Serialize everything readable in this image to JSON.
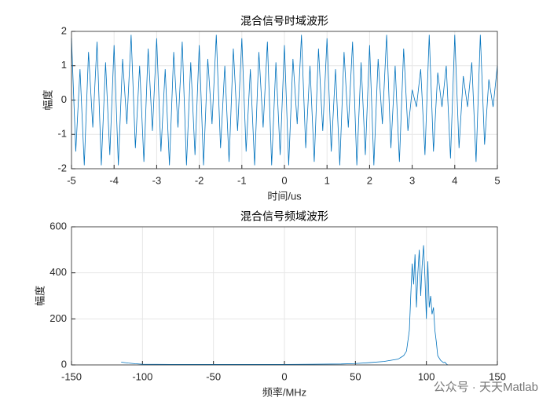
{
  "chart_data": [
    {
      "type": "line",
      "title": "混合信号时域波形",
      "x_label": "时间/us",
      "y_label": "幅度",
      "color": "#0072BD",
      "grid": true,
      "xlim": [
        -5,
        5
      ],
      "ylim": [
        -2,
        2
      ],
      "xticks": [
        -5,
        -4,
        -3,
        -2,
        -1,
        0,
        1,
        2,
        3,
        4,
        5
      ],
      "yticks": [
        -2,
        -1,
        0,
        1,
        2
      ],
      "x": [
        -5,
        -4.9,
        -4.8,
        -4.7,
        -4.6,
        -4.5,
        -4.4,
        -4.3,
        -4.2,
        -4.1,
        -4,
        -3.9,
        -3.8,
        -3.7,
        -3.6,
        -3.5,
        -3.4,
        -3.3,
        -3.2,
        -3.1,
        -3,
        -2.9,
        -2.8,
        -2.7,
        -2.6,
        -2.5,
        -2.4,
        -2.3,
        -2.2,
        -2.1,
        -2,
        -1.9,
        -1.8,
        -1.7,
        -1.6,
        -1.5,
        -1.4,
        -1.3,
        -1.2,
        -1.1,
        -1,
        -0.9,
        -0.8,
        -0.7,
        -0.6,
        -0.5,
        -0.4,
        -0.3,
        -0.2,
        -0.1,
        0,
        0.1,
        0.2,
        0.3,
        0.4,
        0.5,
        0.6,
        0.7,
        0.8,
        0.9,
        1,
        1.1,
        1.2,
        1.3,
        1.4,
        1.5,
        1.6,
        1.7,
        1.8,
        1.9,
        2,
        2.1,
        2.2,
        2.3,
        2.4,
        2.5,
        2.6,
        2.7,
        2.8,
        2.9,
        3,
        3.1,
        3.2,
        3.3,
        3.4,
        3.5,
        3.6,
        3.7,
        3.8,
        3.9,
        4,
        4.1,
        4.2,
        4.3,
        4.4,
        4.5,
        4.6,
        4.7,
        4.8,
        4.9,
        5
      ],
      "values": [
        1.8,
        -1.5,
        0.9,
        -1.9,
        1.4,
        -0.8,
        1.7,
        -1.9,
        1.1,
        -1.6,
        1.6,
        -1.9,
        1.2,
        -0.7,
        1.9,
        -1.4,
        1.0,
        -1.8,
        1.5,
        -0.9,
        1.8,
        -1.5,
        0.9,
        -1.9,
        1.4,
        -0.8,
        1.7,
        -1.9,
        1.1,
        -1.6,
        1.6,
        -1.9,
        1.2,
        -0.7,
        1.9,
        -1.4,
        1.0,
        -1.8,
        1.5,
        -0.9,
        1.8,
        -1.5,
        0.9,
        -1.9,
        1.4,
        -0.8,
        1.7,
        -1.9,
        1.1,
        -1.6,
        1.6,
        -1.9,
        1.2,
        -0.7,
        1.9,
        -1.4,
        1.0,
        -1.8,
        1.5,
        -0.9,
        1.8,
        -1.5,
        0.9,
        -1.9,
        1.4,
        -0.8,
        1.7,
        -1.9,
        1.1,
        -1.6,
        1.6,
        -1.9,
        1.2,
        -0.7,
        1.9,
        -1.4,
        1.0,
        -1.8,
        1.5,
        -0.9,
        0.3,
        -0.2,
        0.9,
        -1.6,
        1.9,
        -1.5,
        0.8,
        -0.2,
        1.0,
        -1.7,
        1.9,
        -1.4,
        0.7,
        -0.2,
        1.1,
        -1.8,
        1.9,
        -1.3,
        0.6,
        -0.2,
        1.0
      ]
    },
    {
      "type": "line",
      "title": "混合信号频域波形",
      "x_label": "频率/MHz",
      "y_label": "幅度",
      "color": "#0072BD",
      "grid": true,
      "xlim": [
        -150,
        150
      ],
      "ylim": [
        0,
        600
      ],
      "xticks": [
        -150,
        -100,
        -50,
        0,
        50,
        100,
        150
      ],
      "yticks": [
        0,
        200,
        400,
        600
      ],
      "x": [
        -115,
        -110,
        -105,
        -100,
        -80,
        -60,
        -40,
        -20,
        0,
        20,
        40,
        50,
        60,
        70,
        80,
        84,
        86,
        88,
        89,
        90,
        91,
        92,
        93,
        94,
        95,
        96,
        97,
        98,
        99,
        100,
        101,
        102,
        103,
        104,
        105,
        106,
        107,
        108,
        110,
        112,
        113,
        114,
        115
      ],
      "values": [
        12,
        8,
        5,
        3,
        2,
        2,
        2,
        2,
        2,
        3,
        4,
        6,
        10,
        15,
        25,
        40,
        60,
        150,
        300,
        440,
        350,
        480,
        250,
        400,
        500,
        300,
        430,
        520,
        380,
        200,
        450,
        250,
        300,
        220,
        250,
        150,
        100,
        40,
        20,
        10,
        12,
        5,
        0
      ]
    }
  ],
  "watermark": "公众号 · 天天Matlab"
}
